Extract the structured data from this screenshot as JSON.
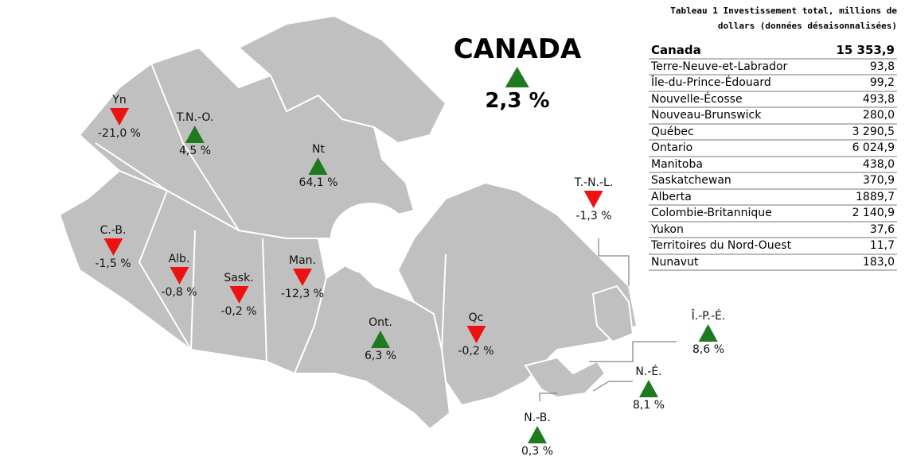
{
  "national": {
    "name": "CANADA",
    "change": "2,3 %",
    "direction": "up"
  },
  "regions": [
    {
      "id": "yn",
      "abbr": "Yn",
      "change": "-21,0 %",
      "direction": "down"
    },
    {
      "id": "tno",
      "abbr": "T.N.-O.",
      "change": "4,5 %",
      "direction": "up"
    },
    {
      "id": "nt",
      "abbr": "Nt",
      "change": "64,1 %",
      "direction": "up"
    },
    {
      "id": "cb",
      "abbr": "C.-B.",
      "change": "-1,5 %",
      "direction": "down"
    },
    {
      "id": "alb",
      "abbr": "Alb.",
      "change": "-0,8 %",
      "direction": "down"
    },
    {
      "id": "sask",
      "abbr": "Sask.",
      "change": "-0,2 %",
      "direction": "down"
    },
    {
      "id": "man",
      "abbr": "Man.",
      "change": "-12,3 %",
      "direction": "down"
    },
    {
      "id": "ont",
      "abbr": "Ont.",
      "change": "6,3 %",
      "direction": "up"
    },
    {
      "id": "qc",
      "abbr": "Qc",
      "change": "-0,2 %",
      "direction": "down"
    },
    {
      "id": "tnl",
      "abbr": "T.-N.-L.",
      "change": "-1,3 %",
      "direction": "down"
    },
    {
      "id": "ipe",
      "abbr": "Î.-P.-É.",
      "change": "8,6 %",
      "direction": "up"
    },
    {
      "id": "ne",
      "abbr": "N.-É.",
      "change": "8,1 %",
      "direction": "up"
    },
    {
      "id": "nb",
      "abbr": "N.-B.",
      "change": "0,3 %",
      "direction": "up"
    }
  ],
  "table": {
    "caption_line1": "Tableau 1 Investissement total, millions de",
    "caption_line2": "dollars (données désaisonnalisées)",
    "rows": [
      {
        "name": "Canada",
        "value": "15 353,9"
      },
      {
        "name": "Terre-Neuve-et-Labrador",
        "value": "93,8"
      },
      {
        "name": "Île-du-Prince-Édouard",
        "value": "99,2"
      },
      {
        "name": "Nouvelle-Écosse",
        "value": "493,8"
      },
      {
        "name": "Nouveau-Brunswick",
        "value": "280,0"
      },
      {
        "name": "Québec",
        "value": "3 290,5"
      },
      {
        "name": "Ontario",
        "value": "6 024,9"
      },
      {
        "name": "Manitoba",
        "value": "438,0"
      },
      {
        "name": "Saskatchewan",
        "value": "370,9"
      },
      {
        "name": "Alberta",
        "value": "1889,7"
      },
      {
        "name": "Colombie-Britannique",
        "value": "2 140,9"
      },
      {
        "name": "Yukon",
        "value": "37,6"
      },
      {
        "name": "Territoires du Nord-Ouest",
        "value": "11,7"
      },
      {
        "name": "Nunavut",
        "value": "183,0"
      }
    ]
  },
  "colors": {
    "land": "#c0c0c0",
    "increase": "#1f7a1f",
    "decrease": "#ee1111",
    "border": "#ffffff"
  }
}
